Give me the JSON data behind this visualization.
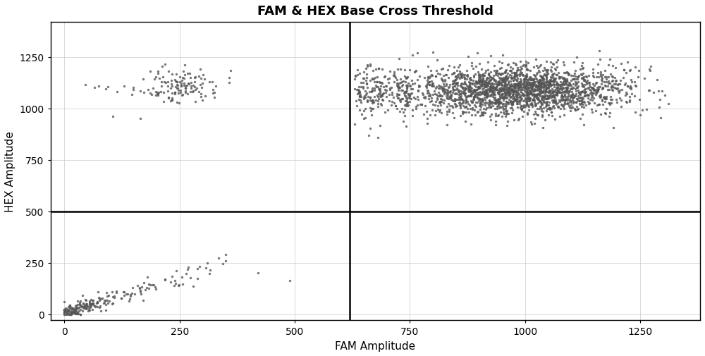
{
  "title": "FAM & HEX Base Cross Threshold",
  "xlabel": "FAM Amplitude",
  "ylabel": "HEX Amplitude",
  "xlim": [
    -30,
    1380
  ],
  "ylim": [
    -30,
    1420
  ],
  "xticks": [
    0,
    250,
    500,
    750,
    1000,
    1250
  ],
  "yticks": [
    0,
    250,
    500,
    750,
    1000,
    1250
  ],
  "vline_x": 620,
  "hline_y": 500,
  "dot_color": "#555555",
  "dot_size": 6,
  "dot_alpha": 0.8,
  "background_color": "#ffffff",
  "title_fontsize": 13,
  "axis_label_fontsize": 11,
  "seed": 42
}
